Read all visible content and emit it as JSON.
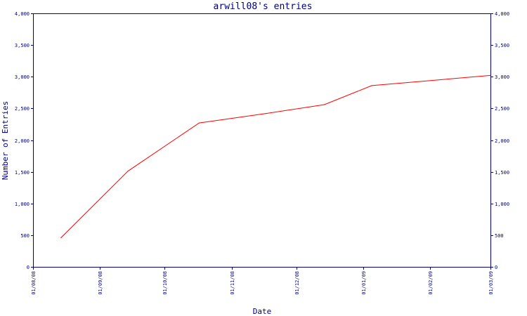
{
  "chart_data": {
    "type": "line",
    "title": "arwill08's entries",
    "xlabel": "Date",
    "ylabel": "Number of Entries",
    "xlim": [
      "2008-08-01",
      "2009-03-01"
    ],
    "ylim": [
      0,
      4000
    ],
    "x_ticks": [
      "01/08/08",
      "01/09/08",
      "01/10/08",
      "01/11/08",
      "01/12/08",
      "01/01/09",
      "01/02/09",
      "01/03/09"
    ],
    "y_ticks": [
      "0",
      "500",
      "1,000",
      "1,500",
      "2,000",
      "2,500",
      "3,000",
      "3,500",
      "4,000"
    ],
    "y_tick_values": [
      0,
      500,
      1000,
      1500,
      2000,
      2500,
      3000,
      3500,
      4000
    ],
    "grid": false,
    "colors": {
      "axis": "#000080",
      "series": "#ff0000"
    },
    "series": [
      {
        "values": [
          {
            "x": "2008-08-14",
            "y": 460
          },
          {
            "x": "2008-09-14",
            "y": 1510
          },
          {
            "x": "2008-10-17",
            "y": 2270
          },
          {
            "x": "2008-11-17",
            "y": 2420
          },
          {
            "x": "2008-12-14",
            "y": 2560
          },
          {
            "x": "2009-01-05",
            "y": 2860
          },
          {
            "x": "2009-03-01",
            "y": 3020
          }
        ]
      }
    ]
  }
}
